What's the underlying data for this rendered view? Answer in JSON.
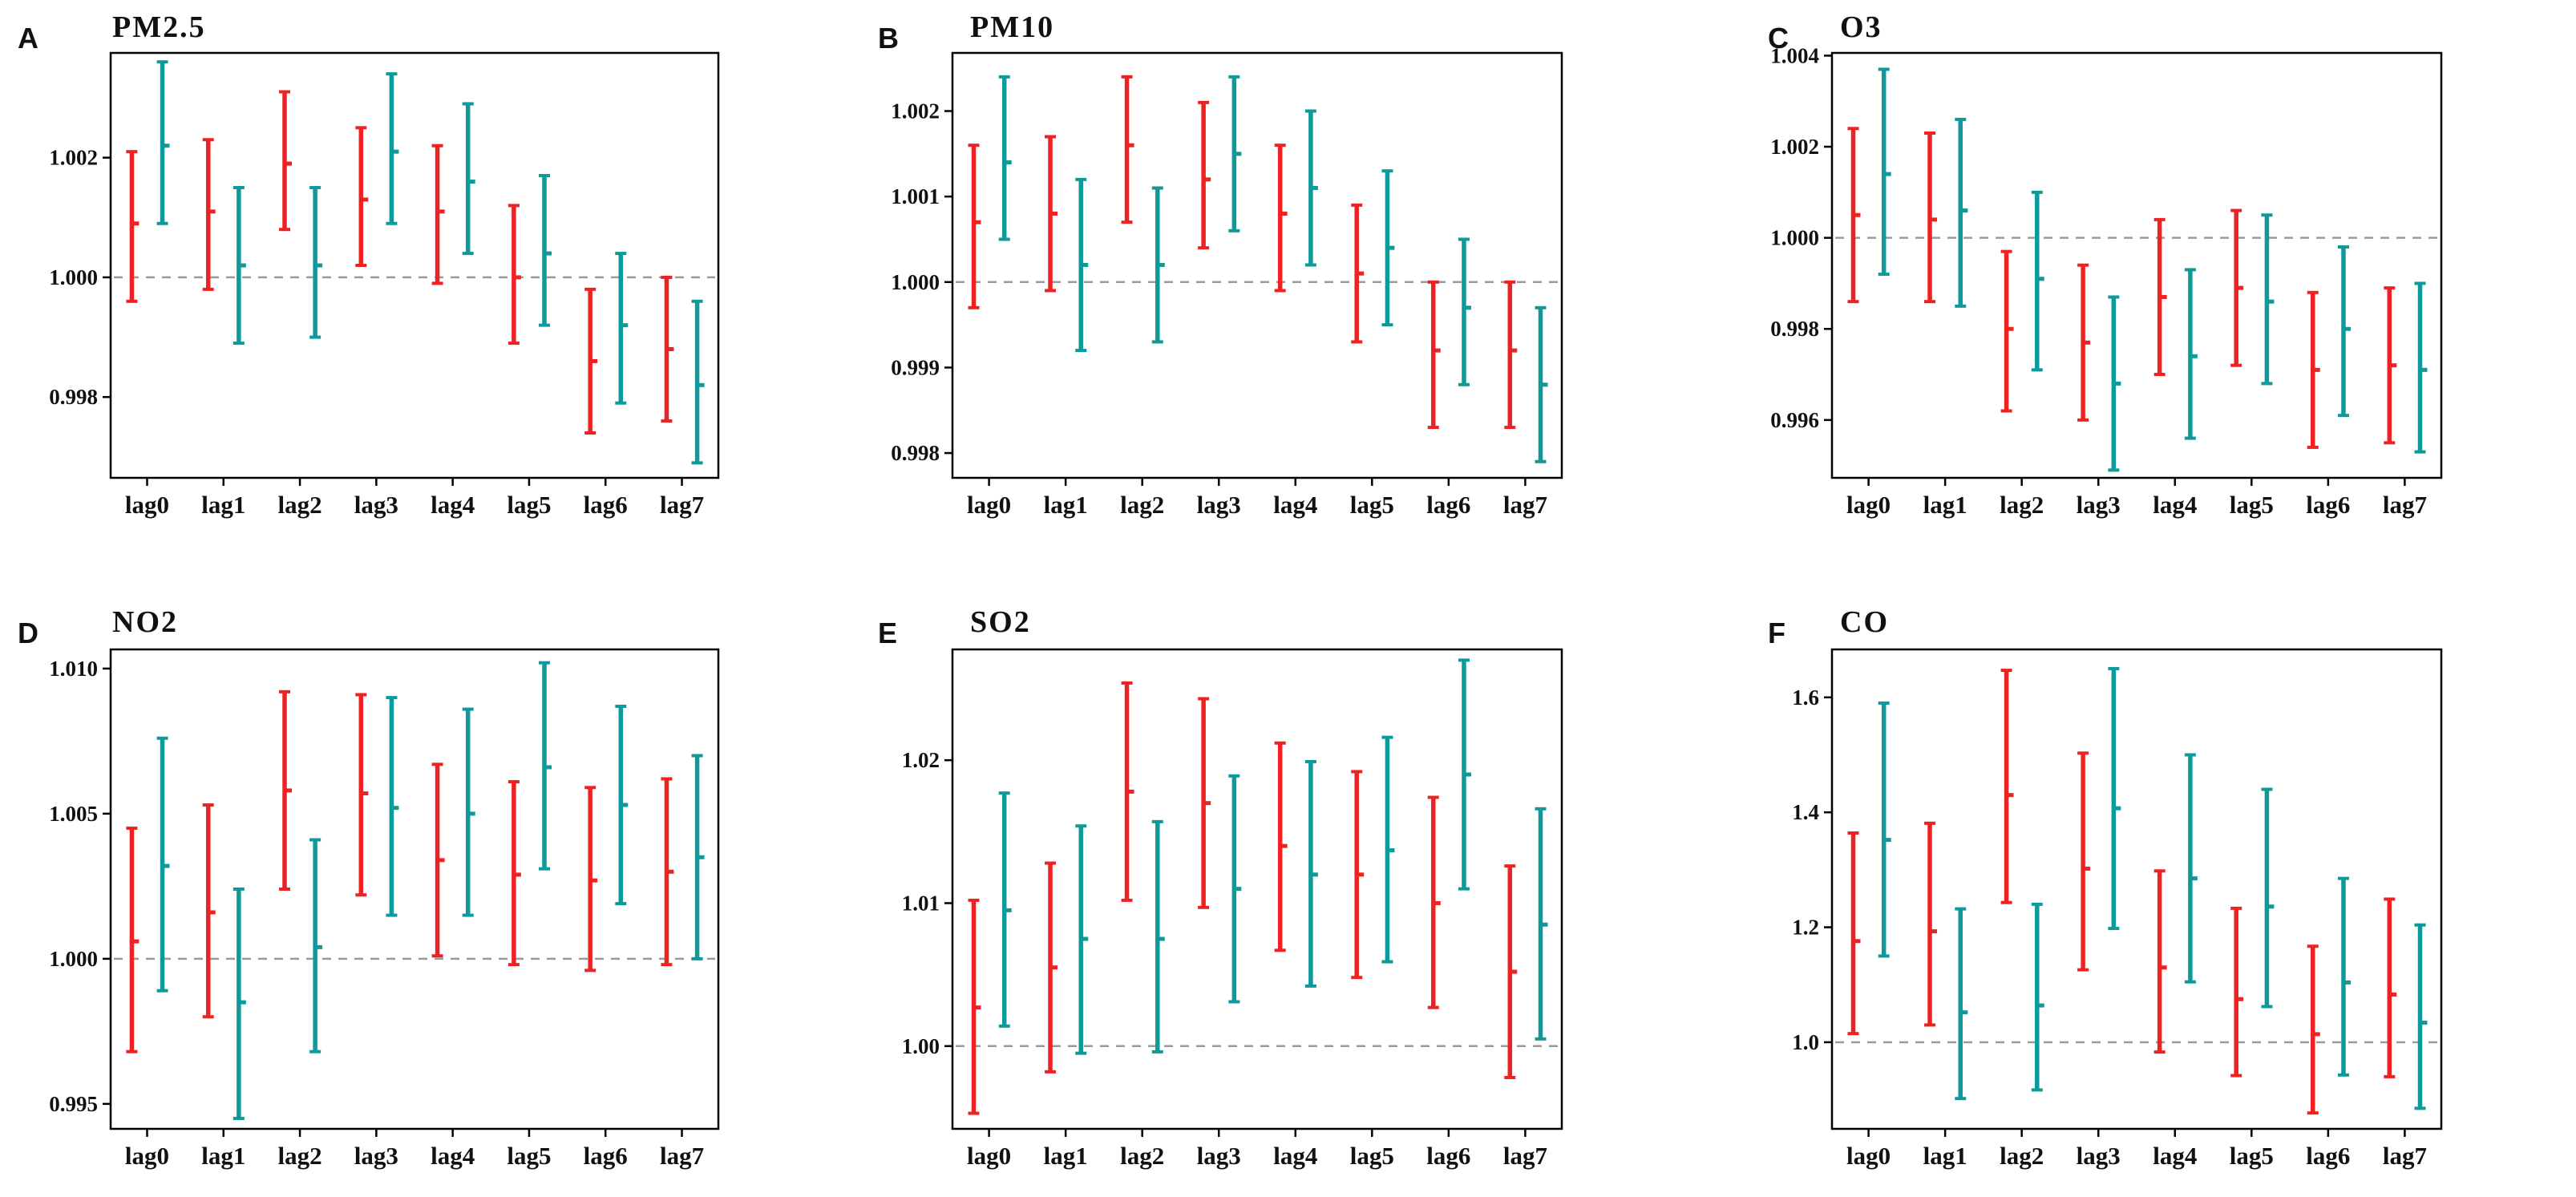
{
  "colors": {
    "series_red": "#ee2222",
    "series_teal": "#0e9a9a",
    "reference": "#9a9a9a"
  },
  "chart_data": [
    {
      "panel": "A",
      "title": "PM2.5",
      "type": "errorbar",
      "categories": [
        "lag0",
        "lag1",
        "lag2",
        "lag3",
        "lag4",
        "lag5",
        "lag6",
        "lag7"
      ],
      "ylim": [
        0.99665,
        1.00375
      ],
      "yticks": [
        0.998,
        1.0,
        1.002
      ],
      "ytick_labels": [
        "0.998",
        "1.000",
        "1.002"
      ],
      "reference": 1.0,
      "series": [
        {
          "name": "red",
          "estimate": [
            1.0009,
            1.0011,
            1.0019,
            1.0013,
            1.0011,
            1.0,
            0.9986,
            0.9988
          ],
          "lower": [
            0.9996,
            0.9998,
            1.0008,
            1.0002,
            0.9999,
            0.9989,
            0.9974,
            0.9976
          ],
          "upper": [
            1.0021,
            1.0023,
            1.0031,
            1.0025,
            1.0022,
            1.0012,
            0.9998,
            1.0
          ]
        },
        {
          "name": "teal",
          "estimate": [
            1.0022,
            1.0002,
            1.0002,
            1.0021,
            1.0016,
            1.0004,
            0.9992,
            0.9982
          ],
          "lower": [
            1.0009,
            0.9989,
            0.999,
            1.0009,
            1.0004,
            0.9992,
            0.9979,
            0.9969
          ],
          "upper": [
            1.0036,
            1.0015,
            1.0015,
            1.0034,
            1.0029,
            1.0017,
            1.0004,
            0.9996
          ]
        }
      ]
    },
    {
      "panel": "B",
      "title": "PM10",
      "type": "errorbar",
      "categories": [
        "lag0",
        "lag1",
        "lag2",
        "lag3",
        "lag4",
        "lag5",
        "lag6",
        "lag7"
      ],
      "ylim": [
        0.99771,
        1.00268
      ],
      "yticks": [
        0.998,
        0.999,
        1.0,
        1.001,
        1.002
      ],
      "ytick_labels": [
        "0.998",
        "0.999",
        "1.000",
        "1.001",
        "1.002"
      ],
      "reference": 1.0,
      "series": [
        {
          "name": "red",
          "estimate": [
            1.0007,
            1.0008,
            1.0016,
            1.0012,
            1.0008,
            1.0001,
            0.9992,
            0.9992
          ],
          "lower": [
            0.9997,
            0.9999,
            1.0007,
            1.0004,
            0.9999,
            0.9993,
            0.9983,
            0.9983
          ],
          "upper": [
            1.0016,
            1.0017,
            1.0024,
            1.0021,
            1.0016,
            1.0009,
            1.0,
            1.0
          ]
        },
        {
          "name": "teal",
          "estimate": [
            1.0014,
            1.0002,
            1.0002,
            1.0015,
            1.0011,
            1.0004,
            0.9997,
            0.9988
          ],
          "lower": [
            1.0005,
            0.9992,
            0.9993,
            1.0006,
            1.0002,
            0.9995,
            0.9988,
            0.9979
          ],
          "upper": [
            1.0024,
            1.0012,
            1.0011,
            1.0024,
            1.002,
            1.0013,
            1.0005,
            0.9997
          ]
        }
      ]
    },
    {
      "panel": "C",
      "title": "O3",
      "type": "errorbar",
      "categories": [
        "lag0",
        "lag1",
        "lag2",
        "lag3",
        "lag4",
        "lag5",
        "lag6",
        "lag7"
      ],
      "ylim": [
        0.99473,
        1.00406
      ],
      "yticks": [
        0.996,
        0.998,
        1.0,
        1.002,
        1.004
      ],
      "ytick_labels": [
        "0.996",
        "0.998",
        "1.000",
        "1.002",
        "1.004"
      ],
      "reference": 1.0,
      "series": [
        {
          "name": "red",
          "estimate": [
            1.0005,
            1.0004,
            0.998,
            0.9977,
            0.9987,
            0.9989,
            0.9971,
            0.9972
          ],
          "lower": [
            0.9986,
            0.9986,
            0.9962,
            0.996,
            0.997,
            0.9972,
            0.9954,
            0.9955
          ],
          "upper": [
            1.0024,
            1.0023,
            0.9997,
            0.9994,
            1.0004,
            1.0006,
            0.9988,
            0.9989
          ]
        },
        {
          "name": "teal",
          "estimate": [
            1.0014,
            1.0006,
            0.9991,
            0.9968,
            0.9974,
            0.9986,
            0.998,
            0.9971
          ],
          "lower": [
            0.9992,
            0.9985,
            0.9971,
            0.9949,
            0.9956,
            0.9968,
            0.9961,
            0.9953
          ],
          "upper": [
            1.0037,
            1.0026,
            1.001,
            0.9987,
            0.9993,
            1.0005,
            0.9998,
            0.999
          ]
        }
      ]
    },
    {
      "panel": "D",
      "title": "NO2",
      "type": "errorbar",
      "categories": [
        "lag0",
        "lag1",
        "lag2",
        "lag3",
        "lag4",
        "lag5",
        "lag6",
        "lag7"
      ],
      "ylim": [
        0.99414,
        1.01066
      ],
      "yticks": [
        0.995,
        1.0,
        1.005,
        1.01
      ],
      "ytick_labels": [
        "0.995",
        "1.000",
        "1.005",
        "1.010"
      ],
      "reference": 1.0,
      "series": [
        {
          "name": "red",
          "estimate": [
            1.0006,
            1.0016,
            1.0058,
            1.0057,
            1.0034,
            1.0029,
            1.0027,
            1.003
          ],
          "lower": [
            0.9968,
            0.998,
            1.0024,
            1.0022,
            1.0001,
            0.9998,
            0.9996,
            0.9998
          ],
          "upper": [
            1.0045,
            1.0053,
            1.0092,
            1.0091,
            1.0067,
            1.0061,
            1.0059,
            1.0062
          ]
        },
        {
          "name": "teal",
          "estimate": [
            1.0032,
            0.9985,
            1.0004,
            1.0052,
            1.005,
            1.0066,
            1.0053,
            1.0035
          ],
          "lower": [
            0.9989,
            0.9945,
            0.9968,
            1.0015,
            1.0015,
            1.0031,
            1.0019,
            1.0
          ],
          "upper": [
            1.0076,
            1.0024,
            1.0041,
            1.009,
            1.0086,
            1.0102,
            1.0087,
            1.007
          ]
        }
      ]
    },
    {
      "panel": "E",
      "title": "SO2",
      "type": "errorbar",
      "categories": [
        "lag0",
        "lag1",
        "lag2",
        "lag3",
        "lag4",
        "lag5",
        "lag6",
        "lag7"
      ],
      "ylim": [
        0.99421,
        1.02775
      ],
      "yticks": [
        1.0,
        1.01,
        1.02
      ],
      "ytick_labels": [
        "1.00",
        "1.01",
        "1.02"
      ],
      "reference": 1.0,
      "series": [
        {
          "name": "red",
          "estimate": [
            1.0027,
            1.0055,
            1.0178,
            1.017,
            1.014,
            1.012,
            1.01,
            1.0052
          ],
          "lower": [
            0.9953,
            0.9982,
            1.0102,
            1.0097,
            1.0067,
            1.0048,
            1.0027,
            0.9978
          ],
          "upper": [
            1.0102,
            1.0128,
            1.0254,
            1.0243,
            1.0212,
            1.0192,
            1.0174,
            1.0126
          ]
        },
        {
          "name": "teal",
          "estimate": [
            1.0095,
            1.0075,
            1.0075,
            1.011,
            1.012,
            1.0137,
            1.019,
            1.0085
          ],
          "lower": [
            1.0014,
            0.9995,
            0.9996,
            1.0031,
            1.0042,
            1.0059,
            1.011,
            1.0005
          ],
          "upper": [
            1.0177,
            1.0154,
            1.0157,
            1.0189,
            1.0199,
            1.0216,
            1.027,
            1.0166
          ]
        }
      ]
    },
    {
      "panel": "F",
      "title": "CO",
      "type": "errorbar",
      "categories": [
        "lag0",
        "lag1",
        "lag2",
        "lag3",
        "lag4",
        "lag5",
        "lag6",
        "lag7"
      ],
      "ylim": [
        0.8493,
        1.6834
      ],
      "yticks": [
        1.0,
        1.2,
        1.4,
        1.6
      ],
      "ytick_labels": [
        "1.0",
        "1.2",
        "1.4",
        "1.6"
      ],
      "reference": 1.0,
      "series": [
        {
          "name": "red",
          "estimate": [
            1.176,
            1.193,
            1.43,
            1.302,
            1.13,
            1.075,
            1.014,
            1.083
          ],
          "lower": [
            1.015,
            1.03,
            1.243,
            1.126,
            0.983,
            0.942,
            0.877,
            0.94
          ],
          "upper": [
            1.364,
            1.381,
            1.647,
            1.503,
            1.298,
            1.233,
            1.167,
            1.249
          ]
        },
        {
          "name": "teal",
          "estimate": [
            1.352,
            1.052,
            1.064,
            1.407,
            1.285,
            1.236,
            1.104,
            1.034
          ],
          "lower": [
            1.15,
            0.902,
            0.917,
            1.198,
            1.105,
            1.062,
            0.943,
            0.885
          ],
          "upper": [
            1.59,
            1.232,
            1.24,
            1.65,
            1.5,
            1.44,
            1.285,
            1.204
          ]
        }
      ]
    }
  ]
}
